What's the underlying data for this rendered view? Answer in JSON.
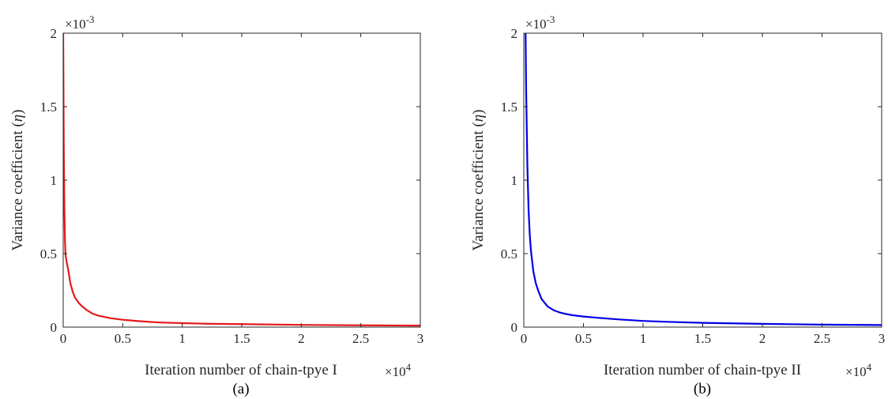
{
  "colors": {
    "series_a": "#e41a1c",
    "series_b": "#0000e6",
    "axes": "#262626"
  },
  "panels": [
    {
      "panel_label": "(a)",
      "xlabel": "Iteration number of chain-tpye I",
      "ylabel_prefix": "Variance coefficient (",
      "ylabel_symbol": "η",
      "ylabel_suffix": ")",
      "x_exponent_base": "×10",
      "x_exponent_power": "4",
      "y_exponent_base": "×10",
      "y_exponent_power": "-3",
      "x_ticks": [
        "0",
        "0.5",
        "1",
        "1.5",
        "2",
        "2.5",
        "3"
      ],
      "y_ticks": [
        "0",
        "0.5",
        "1",
        "1.5",
        "2"
      ]
    },
    {
      "panel_label": "(b)",
      "xlabel": "Iteration number of chain-tpye II",
      "ylabel_prefix": "Variance coefficient (",
      "ylabel_symbol": "η",
      "ylabel_suffix": ")",
      "x_exponent_base": "×10",
      "x_exponent_power": "4",
      "y_exponent_base": "×10",
      "y_exponent_power": "-3",
      "x_ticks": [
        "0",
        "0.5",
        "1",
        "1.5",
        "2",
        "2.5",
        "3"
      ],
      "y_ticks": [
        "0",
        "0.5",
        "1",
        "1.5",
        "2"
      ]
    }
  ],
  "chart_data": [
    {
      "type": "line",
      "xlim": [
        0,
        30000
      ],
      "ylim": [
        0,
        0.002
      ],
      "x_tick_values": [
        0,
        5000,
        10000,
        15000,
        20000,
        25000,
        30000
      ],
      "y_tick_values": [
        0,
        0.0005,
        0.001,
        0.0015,
        0.002
      ],
      "grid": false,
      "legend": "none",
      "series": [
        {
          "color": "#e41a1c",
          "x": [
            0,
            50,
            100,
            150,
            200,
            300,
            400,
            600,
            800,
            1000,
            1300,
            1600,
            2000,
            2500,
            3000,
            4000,
            5000,
            6000,
            7000,
            8000,
            10000,
            12000,
            15000,
            20000,
            25000,
            30000
          ],
          "y": [
            0.002,
            0.0012,
            0.0008,
            0.00058,
            0.00049,
            0.00044,
            0.0004,
            0.0003,
            0.00024,
            0.0002,
            0.000165,
            0.00014,
            0.000115,
            9e-05,
            7.7e-05,
            6e-05,
            5e-05,
            4.3e-05,
            3.7e-05,
            3.2e-05,
            2.7e-05,
            2.3e-05,
            2e-05,
            1.5e-05,
            1.2e-05,
            1e-05
          ]
        }
      ]
    },
    {
      "type": "line",
      "xlim": [
        0,
        30000
      ],
      "ylim": [
        0,
        0.002
      ],
      "x_tick_values": [
        0,
        5000,
        10000,
        15000,
        20000,
        25000,
        30000
      ],
      "y_tick_values": [
        0,
        0.0005,
        0.001,
        0.0015,
        0.002
      ],
      "grid": false,
      "legend": "none",
      "series": [
        {
          "color": "#0000e6",
          "x": [
            150,
            200,
            300,
            400,
            500,
            600,
            800,
            1000,
            1200,
            1500,
            2000,
            2500,
            3000,
            3500,
            4000,
            5000,
            6000,
            7000,
            8000,
            10000,
            12000,
            15000,
            20000,
            25000,
            30000
          ],
          "y": [
            0.002,
            0.0016,
            0.0011,
            0.0008,
            0.00063,
            0.00052,
            0.00038,
            0.0003,
            0.00025,
            0.00019,
            0.00014,
            0.000115,
            0.0001,
            9e-05,
            8.2e-05,
            7.2e-05,
            6.5e-05,
            5.8e-05,
            5.2e-05,
            4.2e-05,
            3.6e-05,
            2.9e-05,
            2.2e-05,
            1.7e-05,
            1.4e-05
          ]
        }
      ]
    }
  ]
}
